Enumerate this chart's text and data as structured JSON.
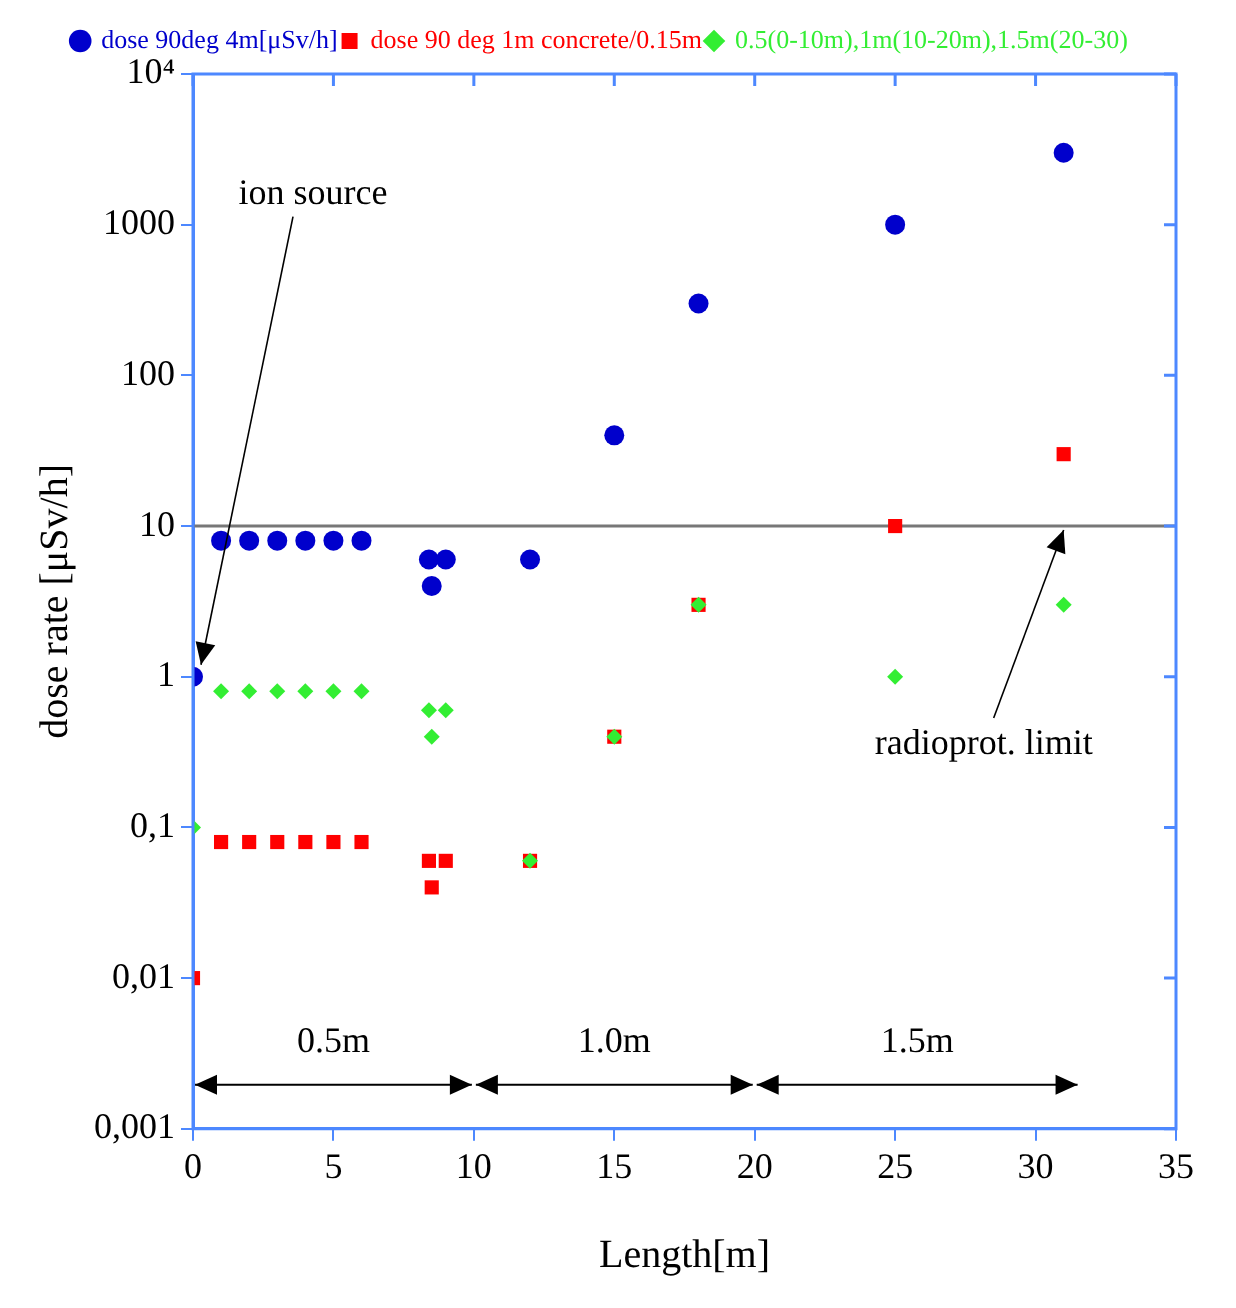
{
  "chart_data": {
    "type": "scatter",
    "xlabel": "Length[m]",
    "ylabel": "dose rate [μSv/h]",
    "log": "y",
    "legend": "top",
    "grid": false,
    "xlim": [
      0,
      35
    ],
    "xticks": [
      0,
      5,
      10,
      15,
      20,
      25,
      30,
      35
    ],
    "ylim": [
      0.001,
      10000
    ],
    "yticks": [
      {
        "value": 0.001,
        "label": "0,001"
      },
      {
        "value": 0.01,
        "label": "0,01"
      },
      {
        "value": 0.1,
        "label": "0,1"
      },
      1,
      10,
      100,
      1000,
      {
        "value": 10000,
        "label": "10⁴"
      }
    ],
    "series": [
      {
        "name": "dose 90deg 4m[μSv/h]",
        "color": "#0000cc",
        "marker": "circle",
        "x": [
          0,
          1,
          2,
          3,
          4,
          5,
          6,
          8.4,
          8.5,
          9,
          12,
          15,
          18,
          25,
          31
        ],
        "values": [
          1,
          8,
          8,
          8,
          8,
          8,
          8,
          6,
          4,
          6,
          6,
          40,
          300,
          1000,
          3000
        ]
      },
      {
        "name": "dose 90 deg 1m concrete/0.15m",
        "color": "#ff0000",
        "marker": "square",
        "x": [
          0,
          1,
          2,
          3,
          4,
          5,
          6,
          8.4,
          8.5,
          9,
          12,
          15,
          18,
          25,
          31
        ],
        "values": [
          0.01,
          0.08,
          0.08,
          0.08,
          0.08,
          0.08,
          0.08,
          0.06,
          0.04,
          0.06,
          0.06,
          0.4,
          3,
          10,
          30
        ]
      },
      {
        "name": "0.5(0-10m),1m(10-20m),1.5m(20-30)",
        "color": "#33ee33",
        "marker": "diamond",
        "x": [
          0,
          1,
          2,
          3,
          4,
          5,
          6,
          8.4,
          8.5,
          9,
          12,
          15,
          18,
          25,
          31
        ],
        "values": [
          0.1,
          0.8,
          0.8,
          0.8,
          0.8,
          0.8,
          0.8,
          0.6,
          0.4,
          0.6,
          0.06,
          0.4,
          3,
          1,
          3
        ]
      }
    ],
    "ref_lines": [
      {
        "axis": "y",
        "value": 10,
        "color": "#777777"
      }
    ],
    "annotations": [
      {
        "text": "ion source",
        "x": 0,
        "y": 1
      },
      {
        "text": "radioprot. limit",
        "x": 31,
        "y": 10
      },
      "0.5m",
      "1.0m",
      "1.5m"
    ]
  }
}
